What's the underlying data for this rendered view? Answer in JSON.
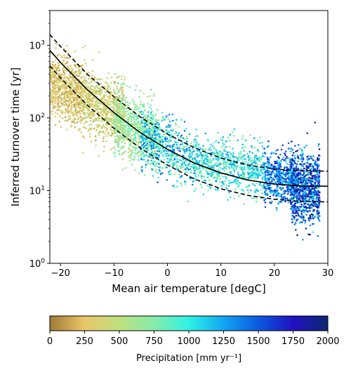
{
  "chart_data": {
    "type": "scatter",
    "xlabel": "Mean air temperature [degC]",
    "ylabel": "Inferred turnover time [yr]",
    "xlim": [
      -22,
      30
    ],
    "ylim": [
      1,
      3000
    ],
    "yscale": "log",
    "x_ticks": [
      -20,
      -10,
      0,
      10,
      20,
      30
    ],
    "x_tick_labels": [
      "−20",
      "−10",
      "0",
      "10",
      "20",
      "30"
    ],
    "y_ticks": [
      1,
      10,
      100,
      1000
    ],
    "y_tick_labels": [
      "10^0",
      "10^1",
      "10^2",
      "10^3"
    ],
    "grid": false,
    "point_clusters": [
      {
        "x_range": [
          -22,
          -16
        ],
        "y_center": 240,
        "spread_dex": 0.22,
        "precip_range": [
          100,
          450
        ],
        "count": 700
      },
      {
        "x_range": [
          -16,
          -8
        ],
        "y_center": 140,
        "spread_dex": 0.22,
        "precip_range": [
          150,
          600
        ],
        "count": 800
      },
      {
        "x_range": [
          -10,
          -2
        ],
        "y_center": 70,
        "spread_dex": 0.22,
        "precip_range": [
          450,
          900
        ],
        "count": 700
      },
      {
        "x_range": [
          -5,
          5
        ],
        "y_center": 38,
        "spread_dex": 0.2,
        "precip_range": [
          600,
          1500
        ],
        "count": 600
      },
      {
        "x_range": [
          5,
          18
        ],
        "y_center": 22,
        "spread_dex": 0.17,
        "precip_range": [
          650,
          1300
        ],
        "count": 700
      },
      {
        "x_range": [
          18,
          24
        ],
        "y_center": 15,
        "spread_dex": 0.17,
        "precip_range": [
          1000,
          1750
        ],
        "count": 500
      },
      {
        "x_range": [
          23,
          28.5
        ],
        "y_center": 11,
        "spread_dex": 0.24,
        "precip_range": [
          1000,
          2000
        ],
        "count": 900
      }
    ],
    "fit_line": {
      "style": "solid",
      "x": [
        -22,
        -20,
        -15,
        -10,
        -5,
        0,
        5,
        10,
        15,
        20,
        25,
        30
      ],
      "y": [
        850,
        580,
        245,
        118,
        62,
        37,
        24,
        17.5,
        14,
        12.3,
        11.6,
        11.5
      ]
    },
    "upper_bound": {
      "style": "dashed",
      "x": [
        -22,
        -20,
        -15,
        -10,
        -5,
        0,
        5,
        10,
        15,
        20,
        25,
        30
      ],
      "y": [
        1400,
        960,
        400,
        195,
        102,
        60,
        39,
        28,
        22.5,
        19.8,
        18.8,
        18.5
      ]
    },
    "lower_bound": {
      "style": "dashed",
      "x": [
        -22,
        -20,
        -15,
        -10,
        -5,
        0,
        5,
        10,
        15,
        20,
        25,
        30
      ],
      "y": [
        520,
        355,
        150,
        72,
        38,
        22.5,
        14.5,
        10.6,
        8.6,
        7.6,
        7.1,
        7.0
      ]
    },
    "colorbar": {
      "label": "Precipitation [mm yr⁻¹]",
      "range": [
        0,
        2000
      ],
      "ticks": [
        0,
        250,
        500,
        750,
        1000,
        1250,
        1500,
        1750,
        2000
      ],
      "tick_labels": [
        "0",
        "250",
        "500",
        "750",
        "1000",
        "1250",
        "1500",
        "1750",
        "2000"
      ],
      "colormap": "gist_earth-like",
      "color_stops": [
        {
          "value": 0,
          "color": "#9e7a35"
        },
        {
          "value": 250,
          "color": "#eac66a"
        },
        {
          "value": 500,
          "color": "#bfe07e"
        },
        {
          "value": 750,
          "color": "#85ecaa"
        },
        {
          "value": 1000,
          "color": "#2ef2e6"
        },
        {
          "value": 1250,
          "color": "#10a6f2"
        },
        {
          "value": 1500,
          "color": "#0c5ae0"
        },
        {
          "value": 1750,
          "color": "#2010c2"
        },
        {
          "value": 2000,
          "color": "#0c2870"
        }
      ]
    }
  }
}
